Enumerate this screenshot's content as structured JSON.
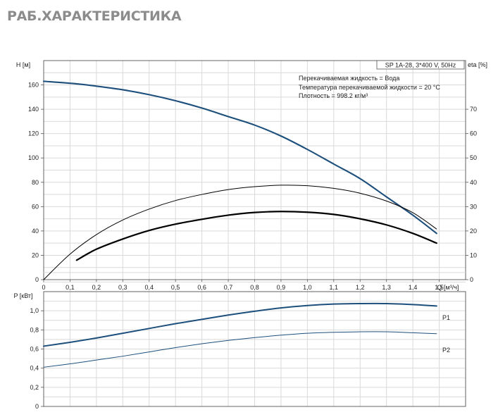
{
  "page": {
    "title": "РАБ.ХАРАКТЕРИСТИКА"
  },
  "colors": {
    "head_curve": "#1d4f7c",
    "power_curve": "#1d4f7c",
    "eta_curve": "#000000",
    "grid": "#d9d9d9",
    "frame": "#555555"
  },
  "chart_data": [
    {
      "type": "line",
      "title": "",
      "xlabel": "Q [м³/ч]",
      "ylabel": "H [м]",
      "y2label": "eta [%]",
      "xlim": [
        0,
        1.6
      ],
      "ylim": [
        0,
        180
      ],
      "y2lim": [
        0,
        90
      ],
      "x_ticks": [
        {
          "v": 0,
          "label": "0"
        },
        {
          "v": 0.1,
          "label": "0,1"
        },
        {
          "v": 0.2,
          "label": "0,2"
        },
        {
          "v": 0.3,
          "label": "0,3"
        },
        {
          "v": 0.4,
          "label": "0,4"
        },
        {
          "v": 0.5,
          "label": "0,5"
        },
        {
          "v": 0.6,
          "label": "0,6"
        },
        {
          "v": 0.7,
          "label": "0,7"
        },
        {
          "v": 0.8,
          "label": "0,8"
        },
        {
          "v": 0.9,
          "label": "0,9"
        },
        {
          "v": 1.0,
          "label": "1,0"
        },
        {
          "v": 1.1,
          "label": "1,1"
        },
        {
          "v": 1.2,
          "label": "1,2"
        },
        {
          "v": 1.3,
          "label": "1,3"
        },
        {
          "v": 1.4,
          "label": "1,4"
        },
        {
          "v": 1.5,
          "label": "1,5"
        }
      ],
      "y_ticks": [
        {
          "v": 0,
          "label": "0"
        },
        {
          "v": 20,
          "label": "20"
        },
        {
          "v": 40,
          "label": "40"
        },
        {
          "v": 60,
          "label": "60"
        },
        {
          "v": 80,
          "label": "80"
        },
        {
          "v": 100,
          "label": "100"
        },
        {
          "v": 120,
          "label": "120"
        },
        {
          "v": 140,
          "label": "140"
        },
        {
          "v": 160,
          "label": "160"
        }
      ],
      "y2_ticks": [
        {
          "v": 0,
          "label": "0"
        },
        {
          "v": 10,
          "label": "10"
        },
        {
          "v": 20,
          "label": "20"
        },
        {
          "v": 30,
          "label": "30"
        },
        {
          "v": 40,
          "label": "40"
        },
        {
          "v": 50,
          "label": "50"
        },
        {
          "v": 60,
          "label": "60"
        },
        {
          "v": 70,
          "label": "70"
        }
      ],
      "info_box": {
        "model": "SP 1A-28, 3*400 V, 50Hz",
        "lines": [
          "Перекачиваемая жидкость = Вода",
          "Температура перекачиваемой жидкости = 20 °C",
          "Плотность = 998.2 кг/м³"
        ]
      },
      "series": [
        {
          "axis": "left",
          "style": "head",
          "x": [
            0,
            0.12,
            0.2,
            0.3,
            0.4,
            0.5,
            0.6,
            0.7,
            0.8,
            0.9,
            1.0,
            1.1,
            1.2,
            1.3,
            1.4,
            1.49
          ],
          "y": [
            163,
            161,
            159,
            156,
            152,
            147,
            141,
            134,
            127,
            118,
            107,
            95,
            83,
            68,
            53,
            38
          ]
        },
        {
          "axis": "right",
          "style": "eta-thin",
          "x": [
            0,
            0.1,
            0.2,
            0.3,
            0.4,
            0.5,
            0.6,
            0.7,
            0.8,
            0.9,
            1.0,
            1.1,
            1.2,
            1.3,
            1.4,
            1.49
          ],
          "y": [
            0,
            10.5,
            18.5,
            24.5,
            29,
            32.5,
            35,
            37,
            38.2,
            38.8,
            38.6,
            37.5,
            35.5,
            32.3,
            27.5,
            20.8
          ]
        },
        {
          "axis": "right",
          "style": "eta-thick",
          "x": [
            0.125,
            0.2,
            0.3,
            0.4,
            0.5,
            0.6,
            0.7,
            0.8,
            0.9,
            1.0,
            1.1,
            1.2,
            1.3,
            1.4,
            1.49
          ],
          "y": [
            8,
            12.5,
            16.7,
            20.2,
            22.8,
            24.8,
            26.5,
            27.6,
            28,
            27.7,
            26.8,
            25,
            22.5,
            19,
            15
          ]
        }
      ]
    },
    {
      "type": "line",
      "title": "",
      "xlabel": "",
      "ylabel": "P [кВт]",
      "xlim": [
        0,
        1.6
      ],
      "ylim": [
        0,
        1.2
      ],
      "y_ticks": [
        {
          "v": 0,
          "label": "0"
        },
        {
          "v": 0.2,
          "label": "0,2"
        },
        {
          "v": 0.4,
          "label": "0,4"
        },
        {
          "v": 0.6,
          "label": "0,6"
        },
        {
          "v": 0.8,
          "label": "0,8"
        },
        {
          "v": 1.0,
          "label": "1,0"
        }
      ],
      "series": [
        {
          "name": "P1",
          "style": "power-thick",
          "x": [
            0,
            0.1,
            0.2,
            0.3,
            0.4,
            0.5,
            0.6,
            0.7,
            0.8,
            0.9,
            1.0,
            1.1,
            1.2,
            1.3,
            1.4,
            1.49
          ],
          "y": [
            0.63,
            0.67,
            0.715,
            0.765,
            0.815,
            0.865,
            0.91,
            0.955,
            0.995,
            1.03,
            1.055,
            1.07,
            1.075,
            1.075,
            1.065,
            1.05
          ]
        },
        {
          "name": "P2",
          "style": "power-thin",
          "x": [
            0,
            0.1,
            0.2,
            0.3,
            0.4,
            0.5,
            0.6,
            0.7,
            0.8,
            0.9,
            1.0,
            1.1,
            1.2,
            1.3,
            1.4,
            1.49
          ],
          "y": [
            0.41,
            0.445,
            0.485,
            0.525,
            0.57,
            0.615,
            0.655,
            0.69,
            0.72,
            0.745,
            0.765,
            0.775,
            0.78,
            0.78,
            0.77,
            0.76
          ]
        }
      ]
    }
  ]
}
